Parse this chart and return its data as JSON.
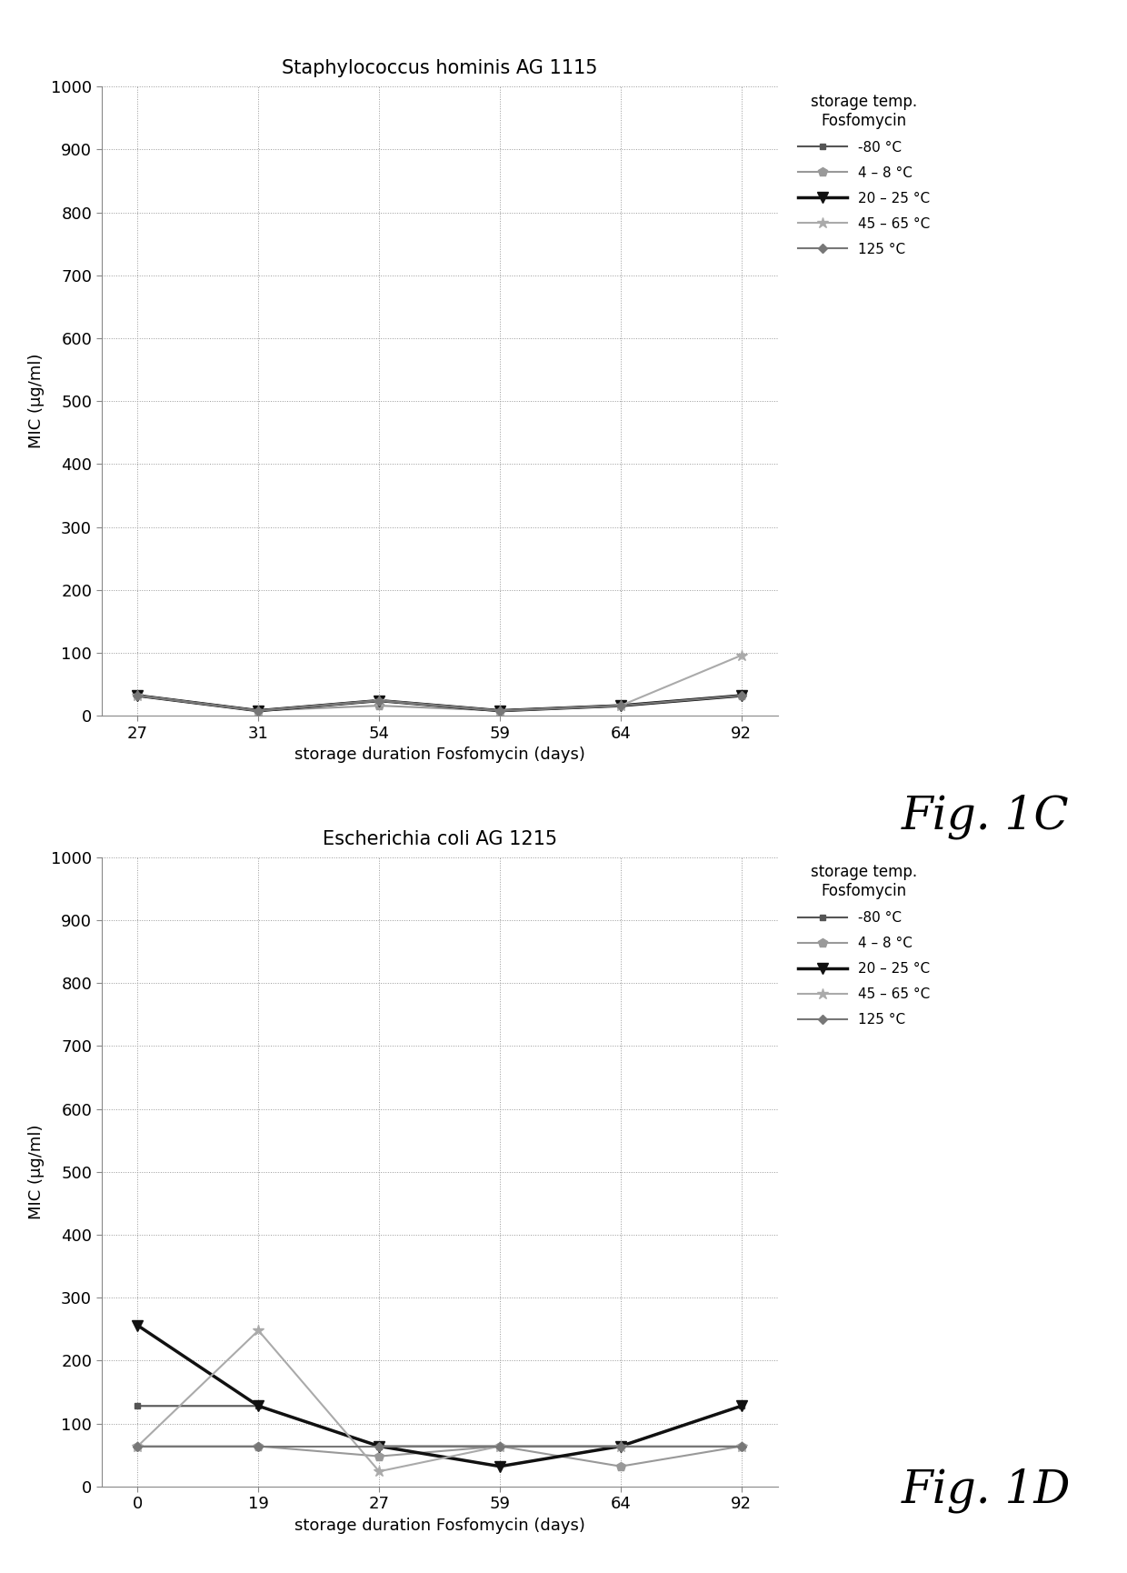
{
  "chart1": {
    "title": "Staphylococcus hominis AG 1115",
    "xlabel": "storage duration Fosfomycin (days)",
    "ylabel": "MIC (µg/ml)",
    "fig_label": "Fig. 1C",
    "xdata": [
      27,
      31,
      54,
      59,
      64,
      92
    ],
    "xlabels": [
      "27",
      "31",
      "54",
      "59",
      "64",
      "92"
    ],
    "series": [
      {
        "label": "-80 °C",
        "color": "#555555",
        "lw": 1.5,
        "marker": "s",
        "ms": 5,
        "ls": "-",
        "mfc": "#555555",
        "data": [
          32,
          8,
          24,
          8,
          16,
          32
        ]
      },
      {
        "label": "4 – 8 °C",
        "color": "#999999",
        "lw": 1.5,
        "marker": "p",
        "ms": 7,
        "ls": "-",
        "mfc": "#999999",
        "data": [
          32,
          8,
          16,
          8,
          16,
          32
        ]
      },
      {
        "label": "20 – 25 °C",
        "color": "#111111",
        "lw": 2.5,
        "marker": "v",
        "ms": 8,
        "ls": "-",
        "mfc": "#111111",
        "data": [
          32,
          8,
          24,
          8,
          16,
          32
        ]
      },
      {
        "label": "45 – 65 °C",
        "color": "#aaaaaa",
        "lw": 1.5,
        "marker": "*",
        "ms": 9,
        "ls": "-",
        "mfc": "#aaaaaa",
        "data": [
          32,
          8,
          24,
          8,
          16,
          96
        ]
      },
      {
        "label": "125 °C",
        "color": "#777777",
        "lw": 1.5,
        "marker": "D",
        "ms": 5,
        "ls": "-",
        "mfc": "#777777",
        "data": [
          32,
          8,
          24,
          8,
          16,
          32
        ]
      }
    ],
    "ylim": [
      0,
      1000
    ],
    "yticks": [
      0,
      100,
      200,
      300,
      400,
      500,
      600,
      700,
      800,
      900,
      1000
    ]
  },
  "chart2": {
    "title": "Escherichia coli AG 1215",
    "xlabel": "storage duration Fosfomycin (days)",
    "ylabel": "MIC (µg/ml)",
    "fig_label": "Fig. 1D",
    "xdata": [
      0,
      19,
      27,
      59,
      64,
      92
    ],
    "xlabels": [
      "0",
      "19",
      "27",
      "59",
      "64",
      "92"
    ],
    "series": [
      {
        "label": "-80 °C",
        "color": "#555555",
        "lw": 1.5,
        "marker": "s",
        "ms": 5,
        "ls": "-",
        "mfc": "#555555",
        "data": [
          128,
          128,
          64,
          64,
          64,
          128
        ]
      },
      {
        "label": "4 – 8 °C",
        "color": "#999999",
        "lw": 1.5,
        "marker": "p",
        "ms": 7,
        "ls": "-",
        "mfc": "#999999",
        "data": [
          64,
          64,
          48,
          64,
          32,
          64
        ]
      },
      {
        "label": "20 – 25 °C",
        "color": "#111111",
        "lw": 2.5,
        "marker": "v",
        "ms": 8,
        "ls": "-",
        "mfc": "#111111",
        "data": [
          256,
          128,
          64,
          32,
          64,
          128
        ]
      },
      {
        "label": "45 – 65 °C",
        "color": "#aaaaaa",
        "lw": 1.5,
        "marker": "*",
        "ms": 9,
        "ls": "-",
        "mfc": "#aaaaaa",
        "data": [
          64,
          248,
          24,
          64,
          64,
          64
        ]
      },
      {
        "label": "125 °C",
        "color": "#777777",
        "lw": 1.5,
        "marker": "D",
        "ms": 5,
        "ls": "-",
        "mfc": "#777777",
        "data": [
          64,
          64,
          64,
          64,
          64,
          64
        ]
      }
    ],
    "ylim": [
      0,
      1000
    ],
    "yticks": [
      0,
      100,
      200,
      300,
      400,
      500,
      600,
      700,
      800,
      900,
      1000
    ]
  },
  "legend_title": "storage temp.\nFosfomycin",
  "bg_color": "#ffffff",
  "grid_color": "#999999",
  "grid_ls": ":"
}
